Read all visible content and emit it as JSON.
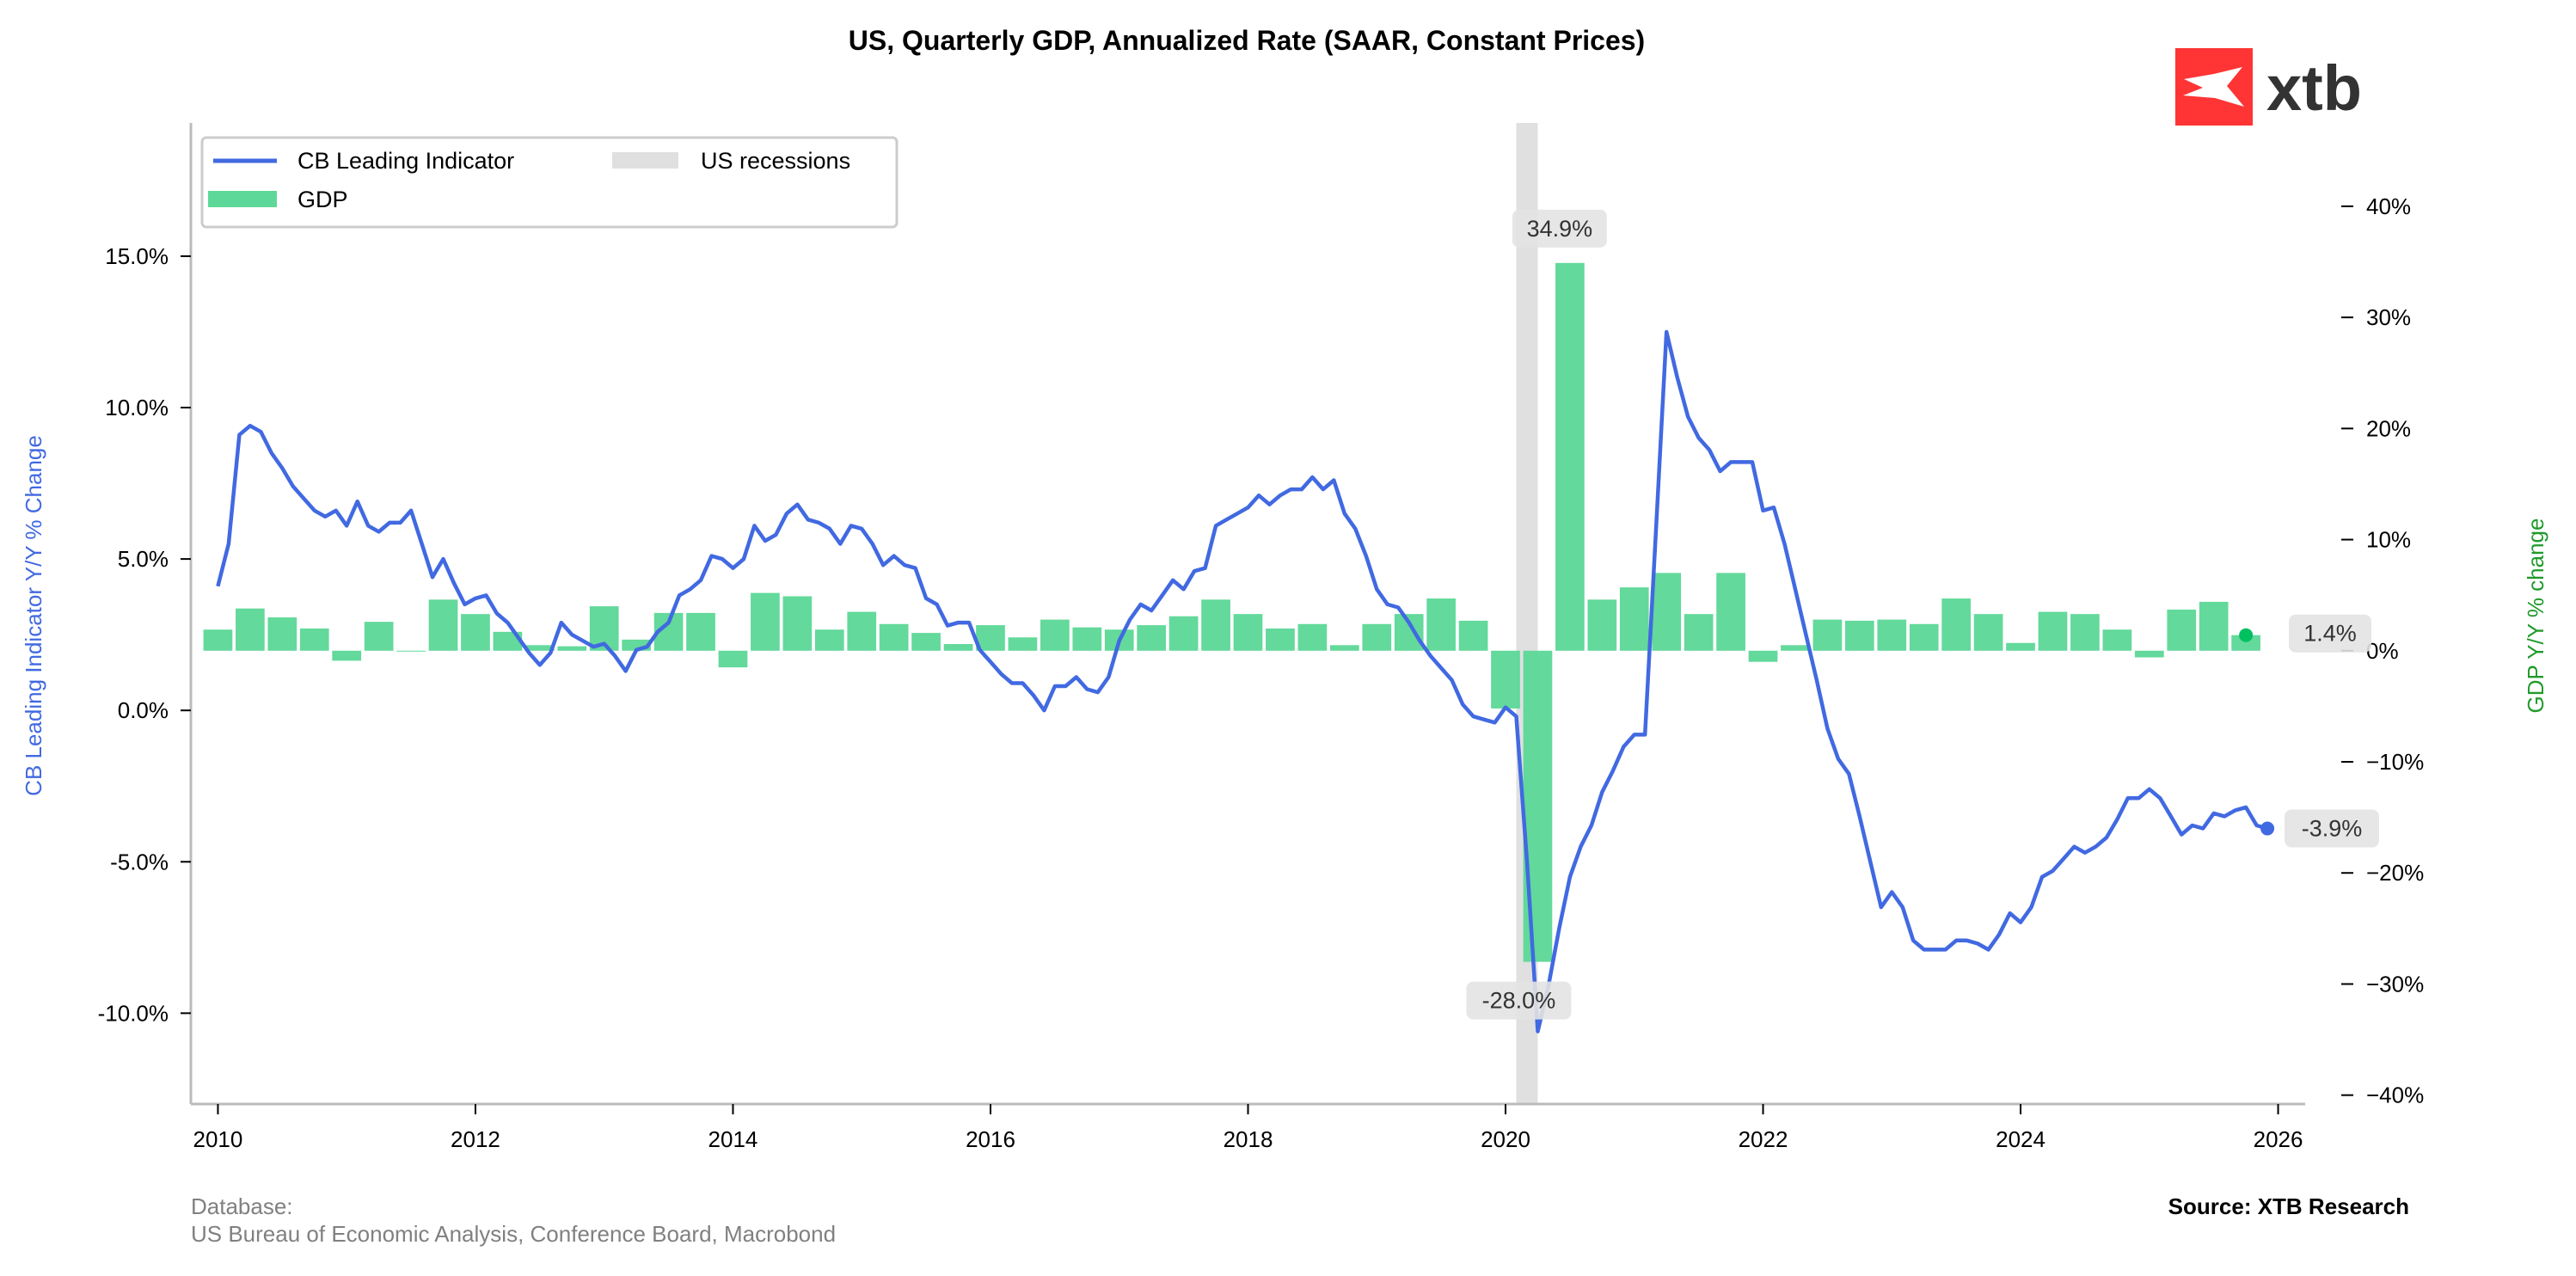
{
  "title": "US, Quarterly GDP, Annualized Rate (SAAR, Constant Prices)",
  "logo": {
    "text": "xtb",
    "colors": {
      "red": "#ff3434",
      "text": "#333333"
    }
  },
  "footer": {
    "database_label": "Database:",
    "database_sources": "US Bureau of Economic Analysis, Conference Board, Macrobond",
    "source": "Source: XTB Research"
  },
  "colors": {
    "line": "#4169e1",
    "bars": "#5ed898",
    "recession": "#e0e0e0",
    "right_label": "#1f9a2a",
    "gdp_dot": "#00c060"
  },
  "chart_data": {
    "type": "bar+line",
    "title": "US, Quarterly GDP, Annualized Rate (SAAR, Constant Prices)",
    "x_ticks": [
      "2010",
      "2012",
      "2014",
      "2016",
      "2018",
      "2020",
      "2022",
      "2024",
      "2026"
    ],
    "x_range": [
      2009.79,
      2026.21
    ],
    "left_axis": {
      "label": "CB Leading Indicator Y/Y % Change",
      "range": [
        -13.0,
        19.4
      ],
      "ticks": [
        15,
        10,
        5,
        0,
        -5,
        -10
      ],
      "tick_labels": [
        "15.0%",
        "10.0%",
        "5.0%",
        "0.0%",
        "-5.0%",
        "-10.0%"
      ]
    },
    "right_axis": {
      "label": "GDP Y/Y % change",
      "range": [
        -40.8,
        47.5
      ],
      "ticks": [
        40,
        30,
        20,
        10,
        0,
        -10,
        -20,
        -30,
        -40
      ],
      "tick_labels": [
        "40%",
        "30%",
        "20%",
        "10%",
        "0%",
        "−10%",
        "−20%",
        "−30%",
        "−40%"
      ]
    },
    "legend": {
      "position": "top-left",
      "items": [
        {
          "label": "CB Leading Indicator",
          "kind": "line"
        },
        {
          "label": "US recessions",
          "kind": "patch-recession"
        },
        {
          "label": "GDP",
          "kind": "patch-bars"
        }
      ]
    },
    "recessions": [
      {
        "start": "2020-02",
        "end": "2020-04"
      }
    ],
    "series": [
      {
        "name": "CB Leading Indicator",
        "axis": "left",
        "frequency": "monthly",
        "start": "2010-01",
        "values_by_year": {
          "2010": [
            4.1,
            5.5,
            9.1,
            9.4,
            9.2,
            8.5,
            8.0,
            7.4,
            7.0,
            6.6,
            6.4,
            6.6
          ],
          "2011": [
            6.1,
            6.9,
            6.1,
            5.9,
            6.2,
            6.2,
            6.6,
            5.5,
            4.4,
            5.0,
            4.2,
            3.5
          ],
          "2012": [
            3.7,
            3.8,
            3.2,
            2.9,
            2.4,
            1.9,
            1.5,
            1.9,
            2.9,
            2.5,
            2.3,
            2.1
          ],
          "2013": [
            2.2,
            1.8,
            1.3,
            2.0,
            2.1,
            2.6,
            2.9,
            3.8,
            4.0,
            4.3,
            5.1,
            5.0
          ],
          "2014": [
            4.7,
            5.0,
            6.1,
            5.6,
            5.8,
            6.5,
            6.8,
            6.3,
            6.2,
            6.0,
            5.5,
            6.1
          ],
          "2015": [
            6.0,
            5.5,
            4.8,
            5.1,
            4.8,
            4.7,
            3.7,
            3.5,
            2.8,
            2.9,
            2.9,
            2.0
          ],
          "2016": [
            1.6,
            1.2,
            0.9,
            0.9,
            0.5,
            0.0,
            0.8,
            0.8,
            1.1,
            0.7,
            0.6,
            1.1
          ],
          "2017": [
            2.3,
            3.0,
            3.5,
            3.3,
            3.8,
            4.3,
            4.0,
            4.6,
            4.7,
            6.1,
            6.3,
            6.5
          ],
          "2018": [
            6.7,
            7.1,
            6.8,
            7.1,
            7.3,
            7.3,
            7.7,
            7.3,
            7.6,
            6.5,
            6.0,
            5.1
          ],
          "2019": [
            4.0,
            3.5,
            3.4,
            2.9,
            2.3,
            1.8,
            1.4,
            1.0,
            0.2,
            -0.2,
            -0.3,
            -0.4
          ],
          "2020": [
            0.1,
            -0.2,
            -5.0,
            -10.6,
            -9.1,
            -7.2,
            -5.5,
            -4.5,
            -3.8,
            -2.7,
            -2.0,
            -1.2
          ],
          "2021": [
            -0.8,
            -0.8,
            5.8,
            12.5,
            11.0,
            9.7,
            9.0,
            8.6,
            7.9,
            8.2,
            8.2,
            8.2
          ],
          "2022": [
            6.6,
            6.7,
            5.5,
            4.0,
            2.5,
            1.0,
            -0.6,
            -1.6,
            -2.1,
            -3.5,
            -5.0,
            -6.5
          ],
          "2023": [
            -6.0,
            -6.5,
            -7.6,
            -7.9,
            -7.9,
            -7.9,
            -7.6,
            -7.6,
            -7.7,
            -7.9,
            -7.4,
            -6.7
          ],
          "2024": [
            -7.0,
            -6.5,
            -5.5,
            -5.3,
            -4.9,
            -4.5,
            -4.7,
            -4.5,
            -4.2,
            -3.6,
            -2.9,
            -2.9
          ],
          "2025": [
            -2.6,
            -2.9,
            -3.5,
            -4.1,
            -3.8,
            -3.9,
            -3.4,
            -3.5,
            -3.3,
            -3.2,
            -3.8,
            -3.9
          ]
        },
        "last_label": "-3.9%"
      },
      {
        "name": "GDP",
        "axis": "right",
        "frequency": "quarterly",
        "start": "2010-Q1",
        "values_by_year": {
          "2010": [
            1.9,
            3.8,
            3.0,
            2.0
          ],
          "2011": [
            -0.9,
            2.6,
            0.0,
            4.6
          ],
          "2012": [
            3.3,
            1.7,
            0.5,
            0.4
          ],
          "2013": [
            4.0,
            1.0,
            3.4,
            3.4
          ],
          "2014": [
            -1.5,
            5.2,
            4.9,
            1.9
          ],
          "2015": [
            3.5,
            2.4,
            1.6,
            0.6
          ],
          "2016": [
            2.3,
            1.2,
            2.8,
            2.1
          ],
          "2017": [
            1.9,
            2.3,
            3.1,
            4.6
          ],
          "2018": [
            3.3,
            2.0,
            2.4,
            0.5
          ],
          "2019": [
            2.4,
            3.3,
            4.7,
            2.7
          ],
          "2020": [
            -5.2,
            -28.0,
            34.9,
            4.6
          ],
          "2021": [
            5.7,
            7.0,
            3.3,
            7.0
          ],
          "2022": [
            -1.0,
            0.5,
            2.8,
            2.7
          ],
          "2023": [
            2.8,
            2.4,
            4.7,
            3.3
          ],
          "2024": [
            0.7,
            3.5,
            3.3,
            1.9
          ],
          "2025": [
            -0.6,
            3.7,
            4.4,
            1.4
          ]
        },
        "annotations": [
          "34.9%",
          "-28.0%"
        ],
        "last_label": "1.4%"
      }
    ]
  }
}
